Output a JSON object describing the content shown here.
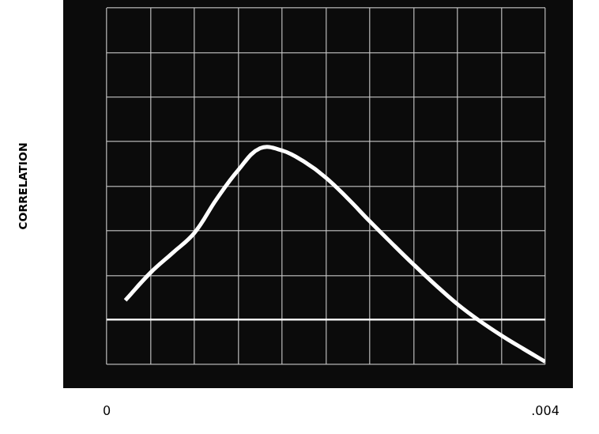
{
  "chart_data": {
    "type": "line",
    "y_label": "CORRELATION",
    "x": [
      0.00017,
      0.0004,
      0.0006,
      0.0008,
      0.001,
      0.0012,
      0.0014,
      0.0016,
      0.0018,
      0.002,
      0.0022,
      0.0024,
      0.0026,
      0.0028,
      0.003,
      0.0032,
      0.0034,
      0.0036,
      0.0038,
      0.004
    ],
    "values": [
      0.44,
      1.06,
      1.5,
      1.95,
      2.7,
      3.36,
      3.85,
      3.8,
      3.55,
      3.19,
      2.72,
      2.21,
      1.72,
      1.24,
      0.78,
      0.35,
      -0.02,
      -0.35,
      -0.65,
      -0.94
    ],
    "color": "#ffffff",
    "xlim": [
      0,
      0.004
    ],
    "xticks": [
      0,
      {
        "value": 0.004,
        "label": ".004"
      }
    ],
    "ylim": [
      -1,
      7
    ],
    "yticks": [
      -1,
      0,
      1,
      2,
      3,
      4,
      5,
      6,
      7
    ],
    "grid": true,
    "tick_labels": "x"
  }
}
